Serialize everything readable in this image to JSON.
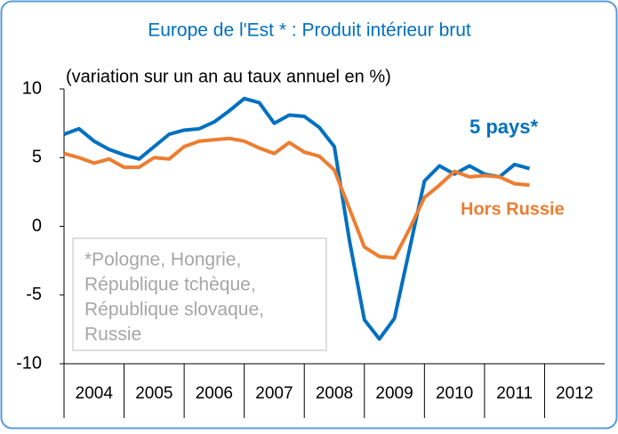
{
  "chart_data": {
    "type": "line",
    "title": "Europe de l'Est * : Produit intérieur brut",
    "subtitle": "(variation sur un an au taux annuel en %)",
    "x": [
      2004,
      2004.25,
      2004.5,
      2004.75,
      2005,
      2005.25,
      2005.5,
      2005.75,
      2006,
      2006.25,
      2006.5,
      2006.75,
      2007,
      2007.25,
      2007.5,
      2007.75,
      2008,
      2008.25,
      2008.5,
      2008.75,
      2009,
      2009.25,
      2009.5,
      2009.75,
      2010,
      2010.25,
      2010.5,
      2010.75,
      2011,
      2011.25,
      2011.5,
      2011.75
    ],
    "series": [
      {
        "name": "5 pays*",
        "color": "#0070c0",
        "values": [
          6.7,
          7.1,
          6.2,
          5.6,
          5.2,
          4.9,
          5.8,
          6.7,
          7.0,
          7.1,
          7.6,
          8.4,
          9.3,
          9.0,
          7.5,
          8.1,
          8.0,
          7.2,
          5.8,
          -1.0,
          -6.8,
          -8.2,
          -6.7,
          -1.7,
          3.3,
          4.4,
          3.8,
          4.4,
          3.8,
          3.6,
          4.5,
          4.2
        ]
      },
      {
        "name": "Hors Russie",
        "color": "#ed7d31",
        "values": [
          5.3,
          5.0,
          4.6,
          4.9,
          4.3,
          4.3,
          5.0,
          4.9,
          5.8,
          6.2,
          6.3,
          6.4,
          6.2,
          5.7,
          5.3,
          6.1,
          5.4,
          5.1,
          4.1,
          1.3,
          -1.5,
          -2.2,
          -2.3,
          -0.2,
          2.1,
          3.0,
          4.0,
          3.6,
          3.7,
          3.6,
          3.1,
          3.0
        ]
      }
    ],
    "xlim": [
      2004,
      2013
    ],
    "xticks": [
      {
        "value": 2004.5,
        "label": "2004"
      },
      {
        "value": 2005.5,
        "label": "2005"
      },
      {
        "value": 2006.5,
        "label": "2006"
      },
      {
        "value": 2007.5,
        "label": "2007"
      },
      {
        "value": 2008.5,
        "label": "2008"
      },
      {
        "value": 2009.5,
        "label": "2009"
      },
      {
        "value": 2010.5,
        "label": "2010"
      },
      {
        "value": 2011.5,
        "label": "2011"
      },
      {
        "value": 2012.5,
        "label": "2012"
      }
    ],
    "ylim": [
      -10,
      10
    ],
    "yticks": [
      -10,
      -5,
      0,
      5,
      10
    ],
    "note": [
      "*Pologne, Hongrie,",
      "République tchèque,",
      "République slovaque,",
      "Russie"
    ],
    "grid": false
  }
}
